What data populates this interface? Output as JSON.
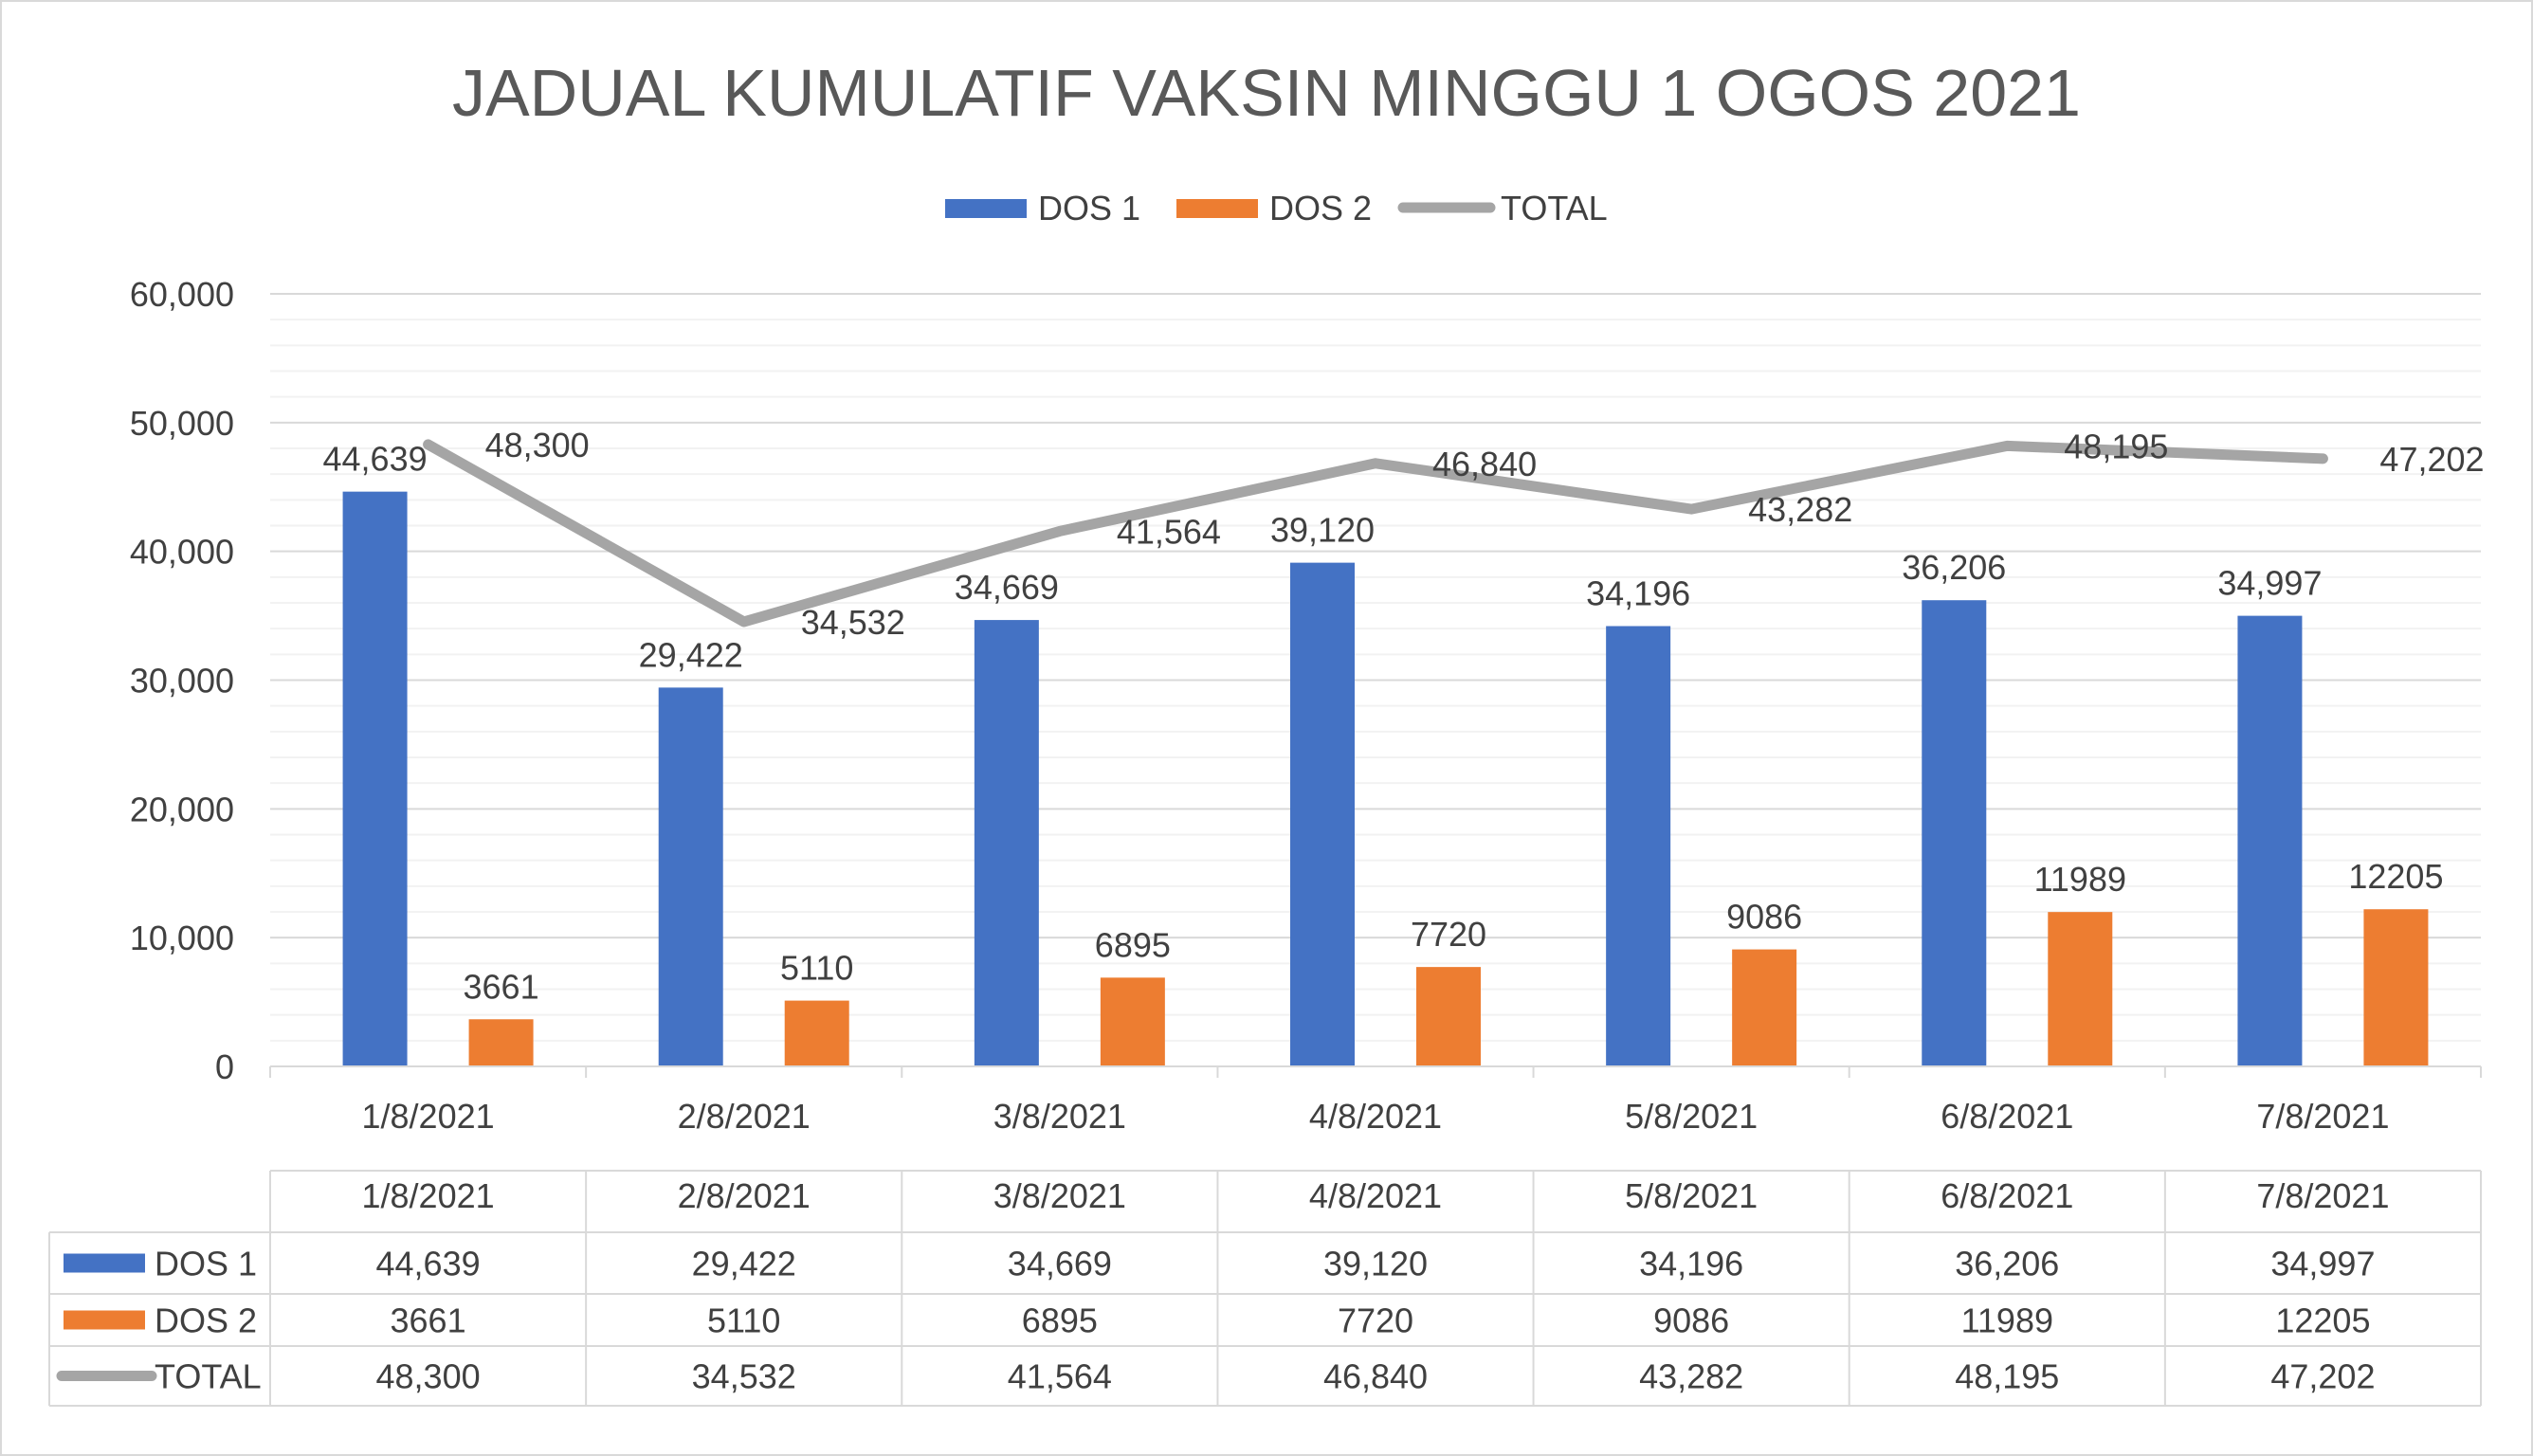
{
  "chart_data": {
    "type": "bar",
    "title": "JADUAL KUMULATIF VAKSIN MINGGU 1 OGOS 2021",
    "categories": [
      "1/8/2021",
      "2/8/2021",
      "3/8/2021",
      "4/8/2021",
      "5/8/2021",
      "6/8/2021",
      "7/8/2021"
    ],
    "series": [
      {
        "name": "DOS 1",
        "kind": "bar",
        "color": "#4472C4",
        "values": [
          44639,
          29422,
          34669,
          39120,
          34196,
          36206,
          34997
        ],
        "labels": [
          "44,639",
          "29,422",
          "34,669",
          "39,120",
          "34,196",
          "36,206",
          "34,997"
        ]
      },
      {
        "name": "DOS 2",
        "kind": "bar",
        "color": "#ED7D31",
        "values": [
          3661,
          5110,
          6895,
          7720,
          9086,
          11989,
          12205
        ],
        "labels": [
          "3661",
          "5110",
          "6895",
          "7720",
          "9086",
          "11989",
          "12205"
        ]
      },
      {
        "name": "TOTAL",
        "kind": "line",
        "color": "#A5A5A5",
        "values": [
          48300,
          34532,
          41564,
          46840,
          43282,
          48195,
          47202
        ],
        "labels": [
          "48,300",
          "34,532",
          "41,564",
          "46,840",
          "43,282",
          "48,195",
          "47,202"
        ]
      }
    ],
    "ylim": [
      0,
      60000
    ],
    "yticks": [
      0,
      10000,
      20000,
      30000,
      40000,
      50000,
      60000
    ],
    "ytick_labels": [
      "0",
      "10,000",
      "20,000",
      "30,000",
      "40,000",
      "50,000",
      "60,000"
    ],
    "grid": true,
    "legend": "top-center",
    "data_table": true
  }
}
